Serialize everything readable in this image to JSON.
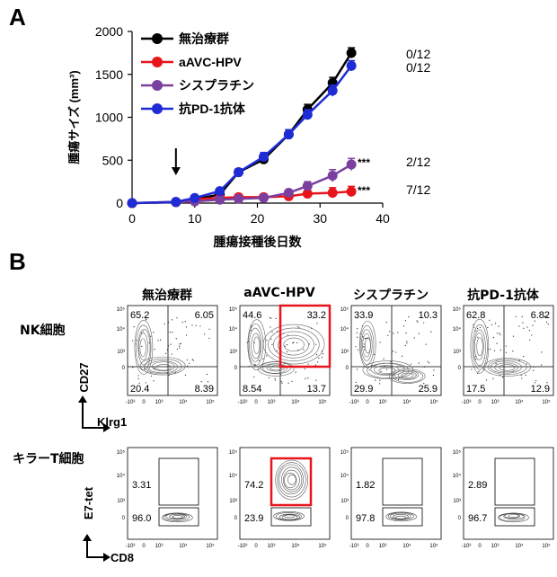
{
  "panel_a_letter": "A",
  "panel_b_letter": "B",
  "chart_data": {
    "type": "line",
    "x": [
      0,
      7,
      10,
      14,
      17,
      21,
      25,
      28,
      32,
      35
    ],
    "xlabel": "腫瘍接種後日数",
    "ylabel": "腫瘍サイズ (mm³)",
    "xlim": [
      0,
      40
    ],
    "ylim": [
      0,
      2000
    ],
    "xticks": [
      0,
      10,
      20,
      30,
      40
    ],
    "yticks": [
      0,
      500,
      1000,
      1500,
      2000
    ],
    "arrow_label_day": 7,
    "legend_position": "top-left",
    "series": [
      {
        "name": "無治療群",
        "color": "#000000",
        "values": [
          0,
          10,
          45,
          100,
          360,
          510,
          800,
          1090,
          1400,
          1750
        ],
        "errors": [
          0,
          5,
          10,
          25,
          40,
          50,
          55,
          60,
          65,
          60
        ],
        "annotation": "0/12",
        "sig": ""
      },
      {
        "name": "aAVC-HPV",
        "color": "#e8141b",
        "values": [
          0,
          15,
          45,
          60,
          70,
          70,
          80,
          110,
          120,
          135
        ],
        "errors": [
          0,
          5,
          10,
          15,
          15,
          15,
          20,
          40,
          60,
          60
        ],
        "annotation": "7/12",
        "sig": "***"
      },
      {
        "name": "シスプラチン",
        "color": "#7b3fa0",
        "values": [
          0,
          10,
          20,
          40,
          50,
          60,
          120,
          200,
          320,
          450
        ],
        "errors": [
          0,
          5,
          5,
          10,
          10,
          15,
          25,
          50,
          70,
          70
        ],
        "annotation": "2/12",
        "sig": "***"
      },
      {
        "name": "抗PD-1抗体",
        "color": "#1f2cd6",
        "values": [
          0,
          15,
          60,
          140,
          360,
          540,
          800,
          1030,
          1310,
          1600
        ],
        "errors": [
          0,
          5,
          15,
          25,
          40,
          50,
          55,
          60,
          65,
          60
        ],
        "annotation": "0/12",
        "sig": ""
      }
    ]
  },
  "flow": {
    "columns": [
      "無治療群",
      "aAVC-HPV",
      "シスプラチン",
      "抗PD-1抗体"
    ],
    "nk_row_label": "NK細胞",
    "t_row_label": "キラーT細胞",
    "nk_y_axis": "CD27",
    "nk_x_axis": "Klrg1",
    "t_y_axis": "E7-tet",
    "t_x_axis": "CD8",
    "nk_quadrants": [
      {
        "ul": "65.2",
        "ur": "6.05",
        "ll": "20.4",
        "lr": "8.39"
      },
      {
        "ul": "44.6",
        "ur": "33.2",
        "ll": "8.54",
        "lr": "13.7"
      },
      {
        "ul": "33.9",
        "ur": "10.3",
        "ll": "29.9",
        "lr": "25.9"
      },
      {
        "ul": "62.8",
        "ur": "6.82",
        "ll": "17.5",
        "lr": "12.9"
      }
    ],
    "t_gates": [
      {
        "upper": "3.31",
        "lower": "96.0"
      },
      {
        "upper": "74.2",
        "lower": "23.9"
      },
      {
        "upper": "1.82",
        "lower": "97.8"
      },
      {
        "upper": "2.89",
        "lower": "96.7"
      }
    ],
    "highlight_column": 1,
    "highlight_color": "#e8141b",
    "nk_y_ticks": [
      "10⁵",
      "10⁴",
      "10³",
      "0"
    ],
    "nk_x_ticks": [
      "-10³",
      "0",
      "10³",
      "10⁴",
      "10⁵"
    ],
    "t_y_ticks": [
      "10⁵",
      "10⁴",
      "10³",
      "0"
    ],
    "t_x_ticks": [
      "-10³",
      "0",
      "10³",
      "10⁴",
      "10⁵"
    ]
  }
}
